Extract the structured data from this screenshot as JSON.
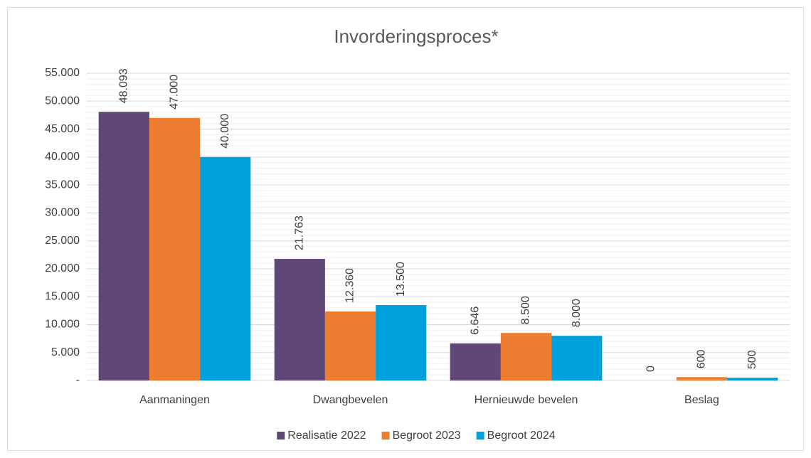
{
  "chart_data": {
    "type": "bar",
    "title": "Invorderingsproces*",
    "categories": [
      "Aanmaningen",
      "Dwangbevelen",
      "Hernieuwde bevelen",
      "Beslag"
    ],
    "series": [
      {
        "name": "Realisatie 2022",
        "color": "#5f4778",
        "values": [
          48093,
          21763,
          6646,
          0
        ],
        "value_labels": [
          "48.093",
          "21.763",
          "6.646",
          "0"
        ]
      },
      {
        "name": "Begroot 2023",
        "color": "#ed7d31",
        "values": [
          47000,
          12360,
          8500,
          600
        ],
        "value_labels": [
          "47.000",
          "12.360",
          "8.500",
          "600"
        ]
      },
      {
        "name": "Begroot 2024",
        "color": "#00a0dc",
        "values": [
          40000,
          13500,
          8000,
          500
        ],
        "value_labels": [
          "40.000",
          "13.500",
          "8.000",
          "500"
        ]
      }
    ],
    "ylim": [
      0,
      55000
    ],
    "yticks": [
      {
        "value": 0,
        "label": "-"
      },
      {
        "value": 5000,
        "label": "5.000"
      },
      {
        "value": 10000,
        "label": "10.000"
      },
      {
        "value": 15000,
        "label": "15.000"
      },
      {
        "value": 20000,
        "label": "20.000"
      },
      {
        "value": 25000,
        "label": "25.000"
      },
      {
        "value": 30000,
        "label": "30.000"
      },
      {
        "value": 35000,
        "label": "35.000"
      },
      {
        "value": 40000,
        "label": "40.000"
      },
      {
        "value": 45000,
        "label": "45.000"
      },
      {
        "value": 50000,
        "label": "50.000"
      },
      {
        "value": 55000,
        "label": "55.000"
      }
    ],
    "grid": true,
    "minor_grid": true,
    "legend": "bottom"
  }
}
